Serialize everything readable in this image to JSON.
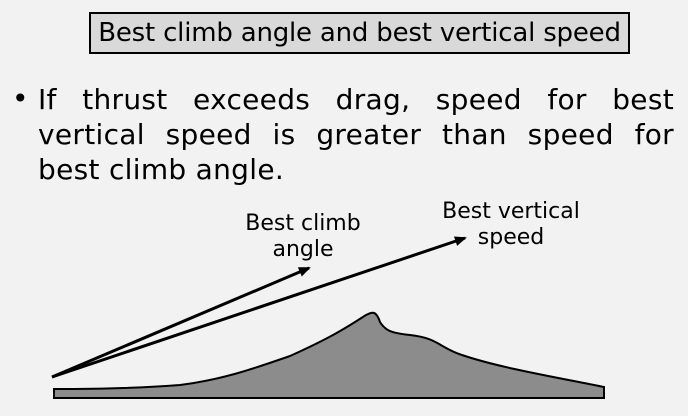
{
  "title": "Best climb angle and best vertical speed",
  "bullet": "If thrust exceeds drag, speed for best vertical speed is greater than speed for best climb angle.",
  "diagram": {
    "labels": {
      "best_climb_angle_line1": "Best climb",
      "best_climb_angle_line2": "angle",
      "best_vertical_speed_line1": "Best vertical",
      "best_vertical_speed_line2": "speed"
    },
    "colors": {
      "terrain_fill": "#8c8c8c",
      "arrow": "#000000",
      "background": "#f2f2f2",
      "title_box": "#d9d9d9"
    }
  }
}
